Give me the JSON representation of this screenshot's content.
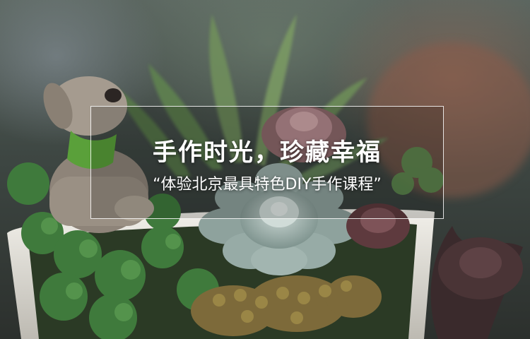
{
  "banner": {
    "headline": "手作时光，珍藏幸福",
    "subline": "“体验北京最具特色DIY手作课程”"
  },
  "colors": {
    "text": "#ffffff",
    "pot": "#e8e6e0",
    "succulent_blue": "#9bb0ab",
    "succulent_pink": "#b58a8f",
    "moss_green": "#3f7a3c"
  }
}
